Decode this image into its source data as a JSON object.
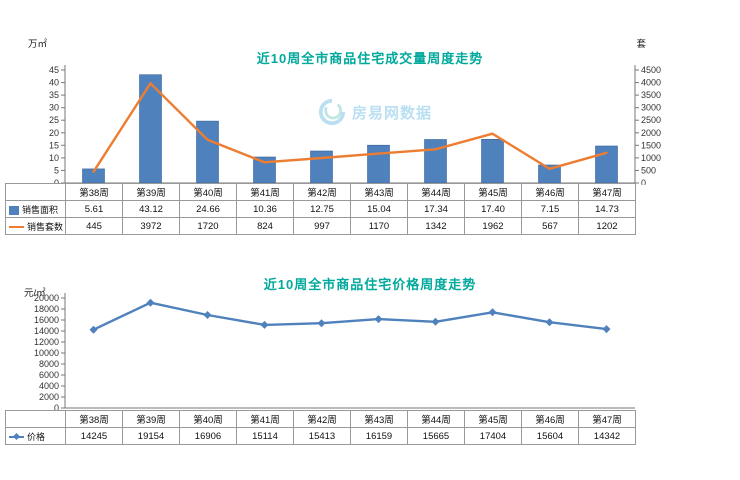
{
  "watermark": {
    "text": "房易网数据"
  },
  "colors": {
    "title": "#00a99c",
    "bar": "#4f81bd",
    "volume_line": "#ed7d31",
    "price_line": "#4f81bd",
    "axis": "#777777",
    "table_border": "#999999"
  },
  "chart_data": [
    {
      "type": "combo-bar-line",
      "title": "近10周全市商品住宅成交量周度走势",
      "left_unit": "万㎡",
      "right_unit": "套",
      "left_axis": {
        "min": 0,
        "max": 45,
        "step": 5
      },
      "right_axis": {
        "min": 0,
        "max": 4500,
        "step": 500
      },
      "categories": [
        "第38周",
        "第39周",
        "第40周",
        "第41周",
        "第42周",
        "第43周",
        "第44周",
        "第45周",
        "第46周",
        "第47周"
      ],
      "series": [
        {
          "name": "销售面积",
          "type": "bar",
          "axis": "left",
          "color": "#4f81bd",
          "legend": "square",
          "values": [
            "5.61",
            "43.12",
            "24.66",
            "10.36",
            "12.75",
            "15.04",
            "17.34",
            "17.40",
            "7.15",
            "14.73"
          ]
        },
        {
          "name": "销售套数",
          "type": "line",
          "axis": "right",
          "color": "#ed7d31",
          "legend": "orange-line",
          "values": [
            "445",
            "3972",
            "1720",
            "824",
            "997",
            "1170",
            "1342",
            "1962",
            "567",
            "1202"
          ]
        }
      ]
    },
    {
      "type": "line",
      "title": "近10周全市商品住宅价格周度走势",
      "left_unit": "元/㎡",
      "left_axis": {
        "min": 0,
        "max": 20000,
        "step": 2000
      },
      "categories": [
        "第38周",
        "第39周",
        "第40周",
        "第41周",
        "第42周",
        "第43周",
        "第44周",
        "第45周",
        "第46周",
        "第47周"
      ],
      "series": [
        {
          "name": "价格",
          "type": "line",
          "axis": "left",
          "color": "#4f81bd",
          "legend": "diamond-line",
          "marker": "diamond",
          "values": [
            "14245",
            "19154",
            "16906",
            "15114",
            "15413",
            "16159",
            "15665",
            "17404",
            "15604",
            "14342"
          ]
        }
      ]
    }
  ]
}
